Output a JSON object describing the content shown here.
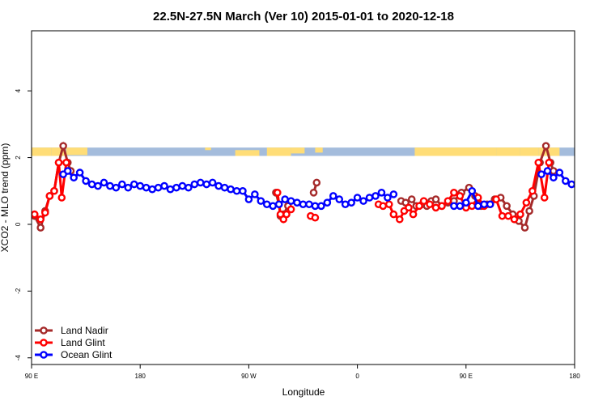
{
  "chart_data": {
    "type": "line",
    "title": "22.5N-27.5N March (Ver 10)   2015-01-01 to 2020-12-18",
    "xlabel": "Longitude",
    "ylabel": "XCO2 - MLO trend (ppm)",
    "xlim": [
      90,
      450
    ],
    "ylim": [
      -4.2,
      5.8
    ],
    "xticks": [
      {
        "value": 90,
        "label": "90 E"
      },
      {
        "value": 180,
        "label": "180"
      },
      {
        "value": 270,
        "label": "90 W"
      },
      {
        "value": 360,
        "label": "0"
      },
      {
        "value": 450,
        "label": "90 E"
      },
      {
        "value": 540,
        "label": "180"
      }
    ],
    "yticks": [
      {
        "value": -4,
        "label": "-4"
      },
      {
        "value": -2,
        "label": "-2"
      },
      {
        "value": 0,
        "label": "0"
      },
      {
        "value": 2,
        "label": "2"
      },
      {
        "value": 4,
        "label": "4"
      }
    ],
    "x_extent": [
      90,
      540
    ],
    "legend_position": "bottom-left",
    "land_ocean_strip": {
      "y_range": [
        2.05,
        2.3
      ],
      "land_color": "#FFDD77",
      "ocean_color": "#A4BCDC"
    },
    "series": [
      {
        "name": "Land Nadir",
        "color": "#A52A2A",
        "segments": [
          [
            [
              92,
              0.25
            ],
            [
              96,
              -0.1
            ],
            [
              99,
              0.4
            ],
            [
              102,
              0.85
            ],
            [
              105,
              1.0
            ],
            [
              108,
              1.85
            ],
            [
              111,
              2.35
            ],
            [
              114,
              1.85
            ],
            [
              116,
              1.6
            ]
          ],
          [
            [
              252,
              0.95
            ],
            [
              254,
              0.6
            ],
            [
              255,
              0.25
            ],
            [
              257,
              0.3
            ],
            [
              260,
              0.55
            ]
          ],
          [
            [
              277,
              0.95
            ],
            [
              279,
              1.25
            ]
          ],
          [
            [
              335,
              0.7
            ],
            [
              338,
              0.65
            ],
            [
              342,
              0.75
            ],
            [
              345,
              0.55
            ],
            [
              349,
              0.6
            ],
            [
              352,
              0.55
            ],
            [
              355,
              0.7
            ],
            [
              358,
              0.75
            ],
            [
              362,
              0.55
            ],
            [
              366,
              0.65
            ],
            [
              370,
              0.7
            ],
            [
              375,
              0.95
            ],
            [
              380,
              1.1
            ],
            [
              384,
              0.85
            ],
            [
              388,
              0.55
            ],
            [
              392,
              0.6
            ],
            [
              397,
              0.75
            ],
            [
              401,
              0.8
            ],
            [
              405,
              0.55
            ],
            [
              409,
              0.3
            ],
            [
              413,
              0.1
            ],
            [
              417,
              -0.1
            ],
            [
              420,
              0.4
            ],
            [
              423,
              0.85
            ],
            [
              427,
              1.85
            ],
            [
              431,
              2.35
            ],
            [
              434,
              1.85
            ],
            [
              436,
              1.6
            ]
          ]
        ]
      },
      {
        "name": "Land Glint",
        "color": "#FF0000",
        "segments": [
          [
            [
              92,
              0.3
            ],
            [
              96,
              0.15
            ],
            [
              99,
              0.35
            ],
            [
              102,
              0.85
            ],
            [
              105,
              1.0
            ],
            [
              108,
              1.85
            ],
            [
              110,
              0.8
            ],
            [
              113,
              1.85
            ]
          ],
          [
            [
              253,
              0.95
            ],
            [
              255,
              0.3
            ],
            [
              257,
              0.15
            ],
            [
              259,
              0.3
            ],
            [
              262,
              0.45
            ]
          ],
          [
            [
              275,
              0.25
            ],
            [
              278,
              0.2
            ]
          ],
          [
            [
              320,
              0.6
            ],
            [
              323,
              0.55
            ],
            [
              327,
              0.6
            ],
            [
              330,
              0.3
            ],
            [
              334,
              0.15
            ],
            [
              337,
              0.4
            ],
            [
              340,
              0.5
            ],
            [
              343,
              0.3
            ],
            [
              347,
              0.55
            ],
            [
              350,
              0.7
            ],
            [
              354,
              0.6
            ],
            [
              358,
              0.5
            ],
            [
              362,
              0.55
            ],
            [
              366,
              0.7
            ],
            [
              370,
              0.95
            ],
            [
              374,
              0.85
            ],
            [
              378,
              0.5
            ],
            [
              382,
              0.55
            ],
            [
              386,
              0.8
            ],
            [
              390,
              0.55
            ],
            [
              394,
              0.6
            ],
            [
              398,
              0.75
            ],
            [
              402,
              0.25
            ],
            [
              406,
              0.25
            ],
            [
              410,
              0.15
            ],
            [
              414,
              0.3
            ],
            [
              418,
              0.65
            ],
            [
              422,
              1.0
            ],
            [
              426,
              1.85
            ],
            [
              430,
              0.8
            ],
            [
              433,
              1.85
            ]
          ]
        ]
      },
      {
        "name": "Ocean Glint",
        "color": "#0000FF",
        "segments": [
          [
            [
              111,
              1.5
            ],
            [
              114,
              1.6
            ],
            [
              118,
              1.4
            ],
            [
              122,
              1.55
            ],
            [
              126,
              1.3
            ],
            [
              130,
              1.2
            ],
            [
              134,
              1.15
            ],
            [
              138,
              1.25
            ],
            [
              142,
              1.15
            ],
            [
              146,
              1.1
            ],
            [
              150,
              1.2
            ],
            [
              154,
              1.1
            ],
            [
              158,
              1.2
            ],
            [
              162,
              1.15
            ],
            [
              166,
              1.1
            ],
            [
              170,
              1.05
            ],
            [
              174,
              1.1
            ],
            [
              178,
              1.15
            ],
            [
              182,
              1.05
            ],
            [
              186,
              1.1
            ],
            [
              190,
              1.15
            ],
            [
              194,
              1.1
            ],
            [
              198,
              1.2
            ],
            [
              202,
              1.25
            ],
            [
              206,
              1.2
            ],
            [
              210,
              1.25
            ],
            [
              214,
              1.15
            ],
            [
              218,
              1.1
            ],
            [
              222,
              1.05
            ],
            [
              226,
              1.0
            ],
            [
              230,
              1.0
            ],
            [
              234,
              0.75
            ],
            [
              238,
              0.9
            ],
            [
              242,
              0.7
            ],
            [
              246,
              0.6
            ],
            [
              250,
              0.55
            ],
            [
              254,
              0.6
            ],
            [
              258,
              0.75
            ],
            [
              262,
              0.7
            ],
            [
              266,
              0.65
            ],
            [
              270,
              0.6
            ],
            [
              274,
              0.6
            ],
            [
              278,
              0.55
            ],
            [
              282,
              0.55
            ],
            [
              286,
              0.65
            ],
            [
              290,
              0.85
            ],
            [
              294,
              0.75
            ],
            [
              298,
              0.6
            ],
            [
              302,
              0.65
            ],
            [
              306,
              0.8
            ],
            [
              310,
              0.7
            ],
            [
              314,
              0.8
            ],
            [
              318,
              0.85
            ],
            [
              322,
              0.95
            ],
            [
              326,
              0.8
            ],
            [
              330,
              0.9
            ]
          ],
          [
            [
              370,
              0.55
            ],
            [
              374,
              0.55
            ],
            [
              378,
              0.65
            ],
            [
              382,
              1.0
            ],
            [
              386,
              0.55
            ],
            [
              390,
              0.6
            ],
            [
              394,
              0.6
            ]
          ],
          [
            [
              428,
              1.5
            ],
            [
              432,
              1.6
            ],
            [
              436,
              1.4
            ],
            [
              440,
              1.55
            ],
            [
              444,
              1.3
            ],
            [
              448,
              1.2
            ],
            [
              452,
              1.15
            ],
            [
              456,
              1.25
            ],
            [
              460,
              1.15
            ],
            [
              464,
              1.1
            ],
            [
              468,
              1.2
            ],
            [
              472,
              1.1
            ],
            [
              476,
              1.2
            ],
            [
              480,
              1.15
            ]
          ]
        ]
      }
    ]
  }
}
